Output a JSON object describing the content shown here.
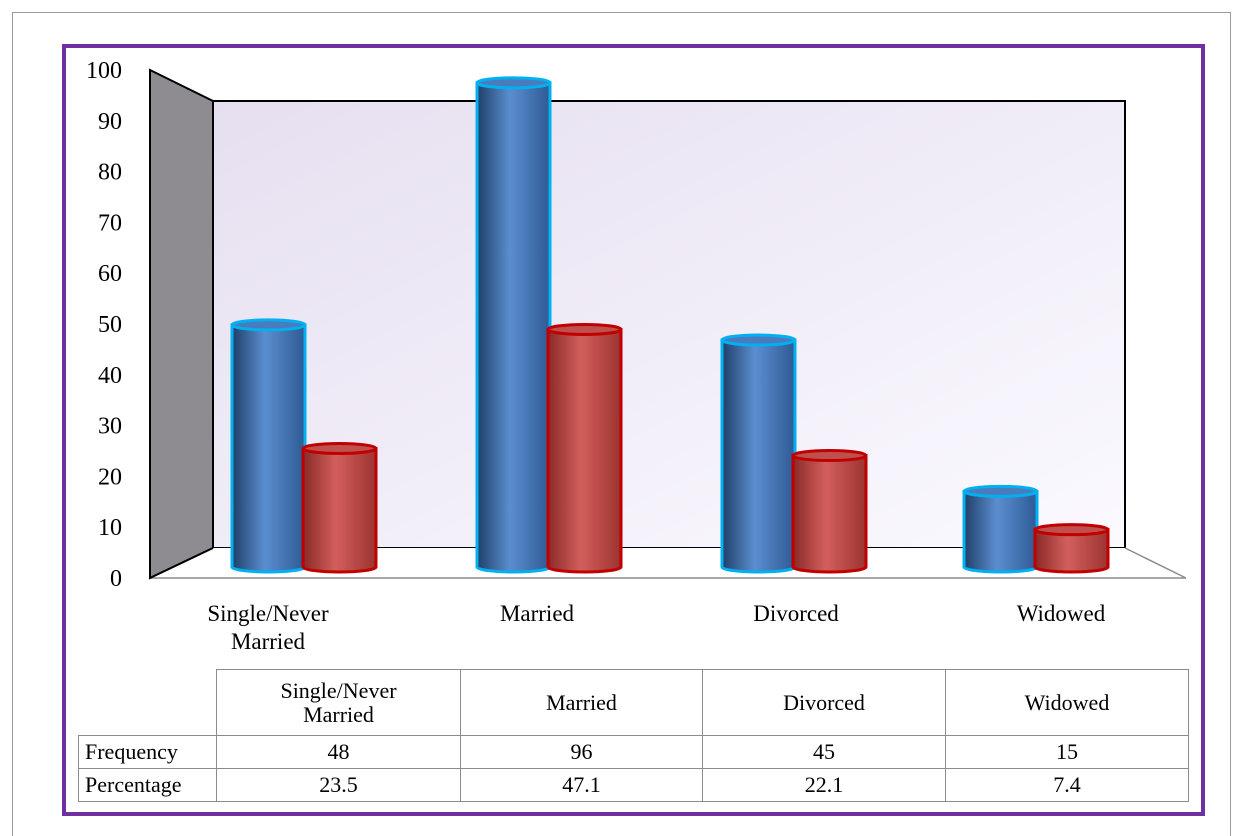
{
  "colors": {
    "frame": "#7030a0",
    "frequency_bar": "#4f81bd",
    "frequency_outline": "#00b0f0",
    "percentage_bar": "#c0504d",
    "percentage_outline": "#c00000",
    "back_wall": "#efe9f5",
    "side_wall": "#8e8b91"
  },
  "chart_data": {
    "type": "bar",
    "style": "3d-cylinder",
    "categories": [
      "Single/Never Married",
      "Married",
      "Divorced",
      "Widowed"
    ],
    "series": [
      {
        "name": "Frequency",
        "values": [
          48,
          96,
          45,
          15
        ]
      },
      {
        "name": "Percentage",
        "values": [
          23.5,
          47.1,
          22.1,
          7.4
        ]
      }
    ],
    "ylim": [
      0,
      100
    ],
    "yticks": [
      "0",
      "10",
      "20",
      "30",
      "40",
      "50",
      "60",
      "70",
      "80",
      "90",
      "100"
    ],
    "grid": false,
    "legend": "data-table-below"
  },
  "table": {
    "headers": [
      "Single/Never Married",
      "Married",
      "Divorced",
      "Widowed"
    ],
    "rows": [
      {
        "label": "Frequency",
        "cells": [
          "48",
          "96",
          "45",
          "15"
        ]
      },
      {
        "label": "Percentage",
        "cells": [
          "23.5",
          "47.1",
          "22.1",
          "7.4"
        ]
      }
    ]
  }
}
